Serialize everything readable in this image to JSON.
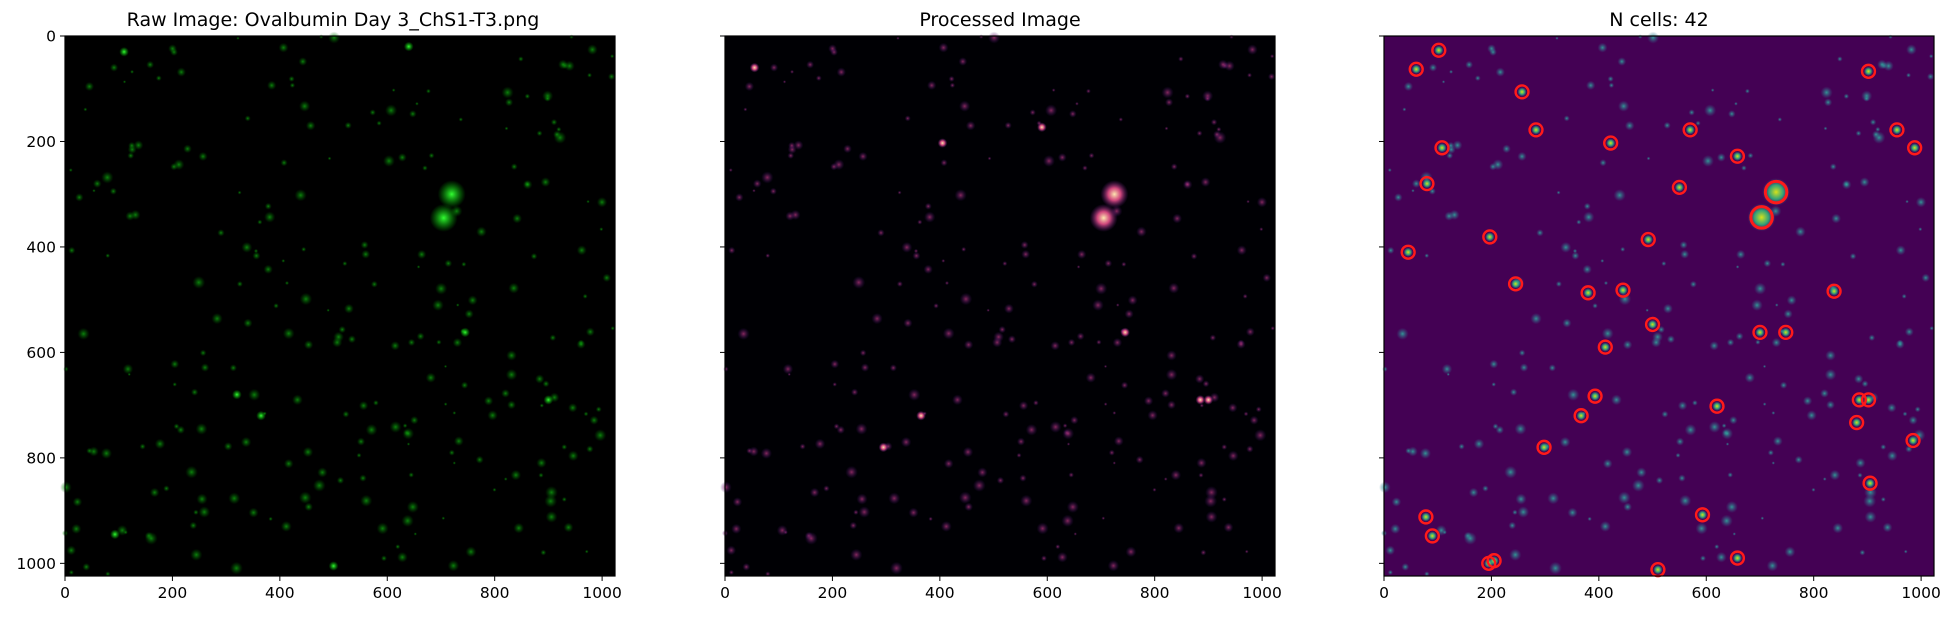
{
  "chart_data": [
    {
      "type": "image",
      "title": "Raw Image: Ovalbumin Day 3_ChS1-T3.png",
      "colormap": "green",
      "xlim": [
        0,
        1024
      ],
      "ylim": [
        1024,
        0
      ],
      "xticks": [
        0,
        200,
        400,
        600,
        800,
        1000
      ],
      "yticks": [
        0,
        200,
        400,
        600,
        800,
        1000
      ],
      "bright_spots": [
        [
          720,
          300
        ],
        [
          705,
          345
        ],
        [
          745,
          562
        ],
        [
          320,
          680
        ],
        [
          365,
          720
        ],
        [
          110,
          30
        ],
        [
          640,
          20
        ],
        [
          900,
          690
        ],
        [
          500,
          1005
        ],
        [
          93,
          945
        ]
      ]
    },
    {
      "type": "image",
      "title": "Processed Image",
      "colormap": "magma",
      "xlim": [
        0,
        1024
      ],
      "ylim": [
        1024,
        0
      ],
      "xticks": [
        0,
        200,
        400,
        600,
        800,
        1000
      ],
      "yticks": [
        0,
        200,
        400,
        600,
        800,
        1000
      ],
      "bright_spots": [
        [
          725,
          300
        ],
        [
          705,
          345
        ],
        [
          745,
          562
        ],
        [
          365,
          720
        ],
        [
          405,
          203
        ],
        [
          590,
          173
        ],
        [
          900,
          690
        ],
        [
          295,
          780
        ],
        [
          55,
          60
        ],
        [
          885,
          690
        ]
      ]
    },
    {
      "type": "scatter",
      "title": "N cells: 42",
      "background_colormap": "viridis",
      "marker": "circle",
      "marker_color": "#ff1a1a",
      "xlim": [
        0,
        1024
      ],
      "ylim": [
        1024,
        0
      ],
      "xticks": [
        0,
        200,
        400,
        600,
        800,
        1000
      ],
      "yticks": [
        0,
        200,
        400,
        600,
        800,
        1000
      ],
      "cells": [
        {
          "x": 102,
          "y": 27,
          "big": false
        },
        {
          "x": 60,
          "y": 63,
          "big": false
        },
        {
          "x": 902,
          "y": 67,
          "big": false
        },
        {
          "x": 257,
          "y": 106,
          "big": false
        },
        {
          "x": 283,
          "y": 178,
          "big": false
        },
        {
          "x": 570,
          "y": 178,
          "big": false
        },
        {
          "x": 955,
          "y": 178,
          "big": false
        },
        {
          "x": 422,
          "y": 203,
          "big": false
        },
        {
          "x": 108,
          "y": 212,
          "big": false
        },
        {
          "x": 988,
          "y": 212,
          "big": false
        },
        {
          "x": 658,
          "y": 228,
          "big": false
        },
        {
          "x": 80,
          "y": 280,
          "big": false
        },
        {
          "x": 550,
          "y": 287,
          "big": false
        },
        {
          "x": 730,
          "y": 296,
          "big": true
        },
        {
          "x": 703,
          "y": 344,
          "big": true
        },
        {
          "x": 197,
          "y": 381,
          "big": false
        },
        {
          "x": 492,
          "y": 386,
          "big": false
        },
        {
          "x": 45,
          "y": 410,
          "big": false
        },
        {
          "x": 245,
          "y": 470,
          "big": false
        },
        {
          "x": 380,
          "y": 487,
          "big": false
        },
        {
          "x": 445,
          "y": 482,
          "big": false
        },
        {
          "x": 838,
          "y": 484,
          "big": false
        },
        {
          "x": 500,
          "y": 547,
          "big": false
        },
        {
          "x": 700,
          "y": 562,
          "big": false
        },
        {
          "x": 748,
          "y": 562,
          "big": false
        },
        {
          "x": 412,
          "y": 590,
          "big": false
        },
        {
          "x": 393,
          "y": 683,
          "big": false
        },
        {
          "x": 885,
          "y": 690,
          "big": false
        },
        {
          "x": 902,
          "y": 690,
          "big": false
        },
        {
          "x": 620,
          "y": 702,
          "big": false
        },
        {
          "x": 367,
          "y": 720,
          "big": false
        },
        {
          "x": 880,
          "y": 733,
          "big": false
        },
        {
          "x": 985,
          "y": 767,
          "big": false
        },
        {
          "x": 298,
          "y": 780,
          "big": false
        },
        {
          "x": 905,
          "y": 848,
          "big": false
        },
        {
          "x": 78,
          "y": 912,
          "big": false
        },
        {
          "x": 593,
          "y": 908,
          "big": false
        },
        {
          "x": 90,
          "y": 948,
          "big": false
        },
        {
          "x": 658,
          "y": 990,
          "big": false
        },
        {
          "x": 195,
          "y": 1000,
          "big": false
        },
        {
          "x": 205,
          "y": 995,
          "big": false
        },
        {
          "x": 510,
          "y": 1012,
          "big": false
        }
      ]
    }
  ]
}
